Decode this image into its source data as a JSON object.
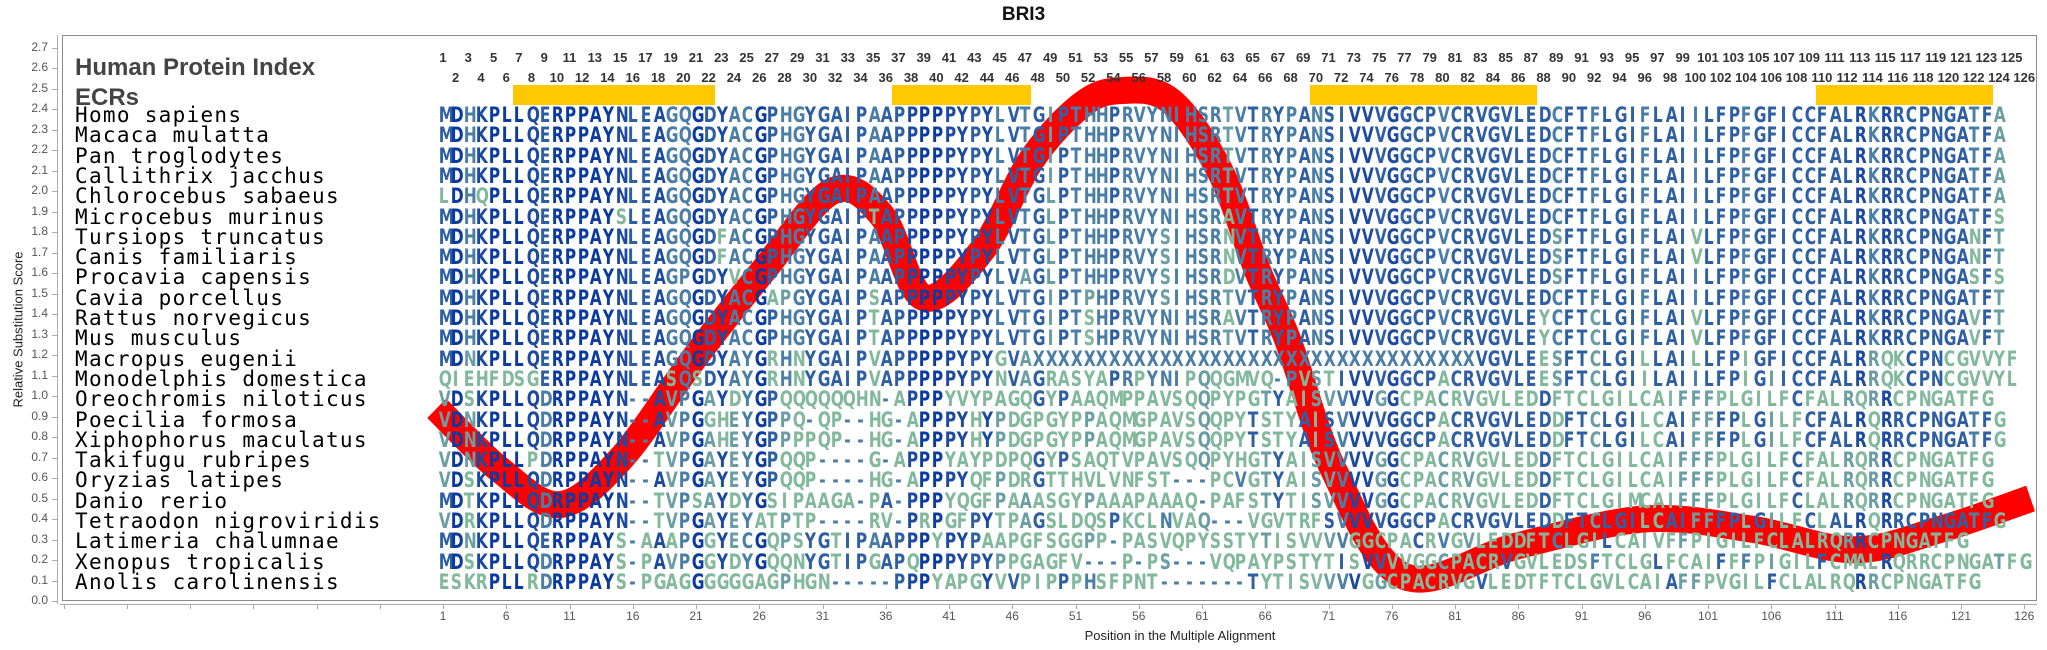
{
  "title": "BRI3",
  "header": {
    "index_label": "Human Protein Index",
    "ecr_label": "ECRs"
  },
  "colors": {
    "curve": "#ff0000",
    "ecr": "#ffc800",
    "conserved": "#0b3b9e",
    "variable": "#78ad9c"
  },
  "ecrs": [
    {
      "start": 7,
      "end": 22
    },
    {
      "start": 37,
      "end": 47
    },
    {
      "start": 70,
      "end": 87
    },
    {
      "start": 110,
      "end": 123
    }
  ],
  "column_count": 126,
  "alignment": [
    {
      "species": "Homo sapiens",
      "sequence": "MDHKPLLQERPPAYNLEAGQGDYACGPHGYGAIPAAPPPPPYPYLVTGIPTHHPRVYNIHSRTVTRYPANSIVVVGGCPVCRVGVLEDCFTFLGIFLAIILFPFGFICCFALRKRRCPNGATFA"
    },
    {
      "species": "Macaca mulatta",
      "sequence": "MDHKPLLQERPPAYNLEAGQGDYACGPHGYGAIPAAPPPPPYPYLVTGIPTHHPRVYNIHSRTVTRYPANSIVVVGGCPVCRVGVLEDCFTFLGIFLAIILFPFGFICCFALRKRRCPNGATFA"
    },
    {
      "species": "Pan troglodytes",
      "sequence": "MDHKPLLQERPPAYNLEAGQGDYACGPHGYGAIPAAPPPPPYPYLVTGIPTHHPRVYNIHSRTVTRYPANSIVVVGGCPVCRVGVLEDCFTFLGIFLAIILFPFGFICCFALRKRRCPNGATFA"
    },
    {
      "species": "Callithrix jacchus",
      "sequence": "MDHKPLLQERPPAYNLEAGQGDYACGPHGYGAIPAAPPPPPYPYLVTGIPTHHPRVYNIHSRTVTRYPANSIVVVGGCPVCRVGVLEDCFTFLGIFLAIILFPFGFICCFALRKRRCPNGATFA"
    },
    {
      "species": "Chlorocebus sabaeus",
      "sequence": "LDHQPLLQERPPAYNLEAGQGDYACGPHGYGAIPAAPPPPPYPYLVTGLPTHHPRVYNIHSRTVTRYPANSIVVVGGCPVCRVGVLEDCFTFLGIFLAIILFPFGFICCFALRKRRCPNGATFA"
    },
    {
      "species": "Microcebus murinus",
      "sequence": "MDHKPLLQERPPAYSLEAGQGDYACGPHGYGAIPTAPPPPPYPYLVTGLPTHHPRVYNIHSRAVTRYPANSIVVVGGCPVCRVGVLEDCFTFLGIFLAIILFPFGFICCFALRKRRCPNGATFS"
    },
    {
      "species": "Tursiops truncatus",
      "sequence": "MDHKPLLQERPPAYNLEAGQGDFACGPHGYGAIPAAPPPPPYPYLVTGLPTHHPRVYSIHSRNVTRYPANSIVVVGGCPVCRVGVLEDSFTFLGIFLAIVLFPFGFICCFALRKRRCPNGANFT"
    },
    {
      "species": "Canis familiaris",
      "sequence": "MDHKPLLQERPPAYNLEAGQGDFACGPHGYGAIPAAPPPPPYPYLVTGLPTHHPRVYSIHSRNVTRYPANSIVVVGGCPVCRVGVLEDSFTFLGIFLAIVLFPFGFICCFALRKRRCPNGANFT"
    },
    {
      "species": "Procavia capensis",
      "sequence": "MDHKPLLQERPPAYNLEAGPGDYVCGPHGYGAIPAAPPPPPYPYLVAGLPTHHPRVYSIHSRDVTRYPANSIVVVGGCPVCRVGVLEDSFTFLGIFLAIILFPFGFICCFALRKRRCPNGASFS"
    },
    {
      "species": "Cavia porcellus",
      "sequence": "MDHKPLLQERPPAYNLEAGQGDYACGAPGYGAIPSAPPPPPYPYLVTGIPTPHPRVYSIHSRTVTRYPANSIVVVGGCPVCRVGVLEDCFTFLGIFLAIILFPFGFICCFALRKRRCPNGATFT"
    },
    {
      "species": "Rattus norvegicus",
      "sequence": "MDHKPLLQERPPAYNLEAGQGDYACGPHGYGAIPTAPPPPPYPYLVTGIPTSHPRVYNIHSRAVTRYPANSIVVVGGCPVCRVGVLEYCFTCLGIFLAIVLFPFGFICCFALRKRRCPNGAVFT"
    },
    {
      "species": "Mus musculus",
      "sequence": "MDHKPLLQERPPAYNLEAGQGDYACGPHGYGAIPTAPPPPPYPYLVTGIPTSHPRVYNIHSRTVTRYPANSIVVVGGCPVCRVGVLEYCFTCLGIFLAIVLFPFGFICCFALRKRRCPNGAVFT"
    },
    {
      "species": "Macropus eugenii",
      "sequence": "MDNKPLLQERPPAYNLEAGQGDYAYGRHNYGAIPVAPPPPPYPYGVAXXXXXXXXXXXXXXXXXXXXXXXXXXXXXXXXXXXVGVLEESFTCLGILLAILLFPIGFICCFALRRQKCPNCGVVYF"
    },
    {
      "species": "Monodelphis domestica",
      "sequence": "QIEHFDSGERPPAYNLEASQSDYAYGRHNYGAIPVAPPPPPYPYNVAGRASYAPRPYNIPQQGMVQ-PVSTIVVVGGCPACRVGVLEESFTCLGIILAIILFPIGIICCFALRRQKCPNCGVVYL"
    },
    {
      "species": "Oreochromis niloticus",
      "sequence": "VDSKPLLQDRPPAYN--AVPGAYDYGPQQQQQQHN-APPPYVYPAGQGYPAAQMPPAVSQQPYPGTYAISVVVVGGCPACRVGVLEDDFTCLGILCAIFFFPLGILFCFALRQRRCPNGATFG"
    },
    {
      "species": "Poecilia formosa",
      "sequence": "VDNKPLLQDRPPAYN--AVPGGHEYGPPQ-QP--HG-APPPYHYPDGPGYPPAQMGPAVSQQPYTSTYAISVVVVGGCPACRVGVLEDDFTCLGILCAIFFFPLGILFCFALRQRRCPNGATFG"
    },
    {
      "species": "Xiphophorus maculatus",
      "sequence": "VDNKPLLQDRPPAYN--AVPGAHEYGPPPPQP--HG-APPPYHYPDGPGYPPAQMGPAVSQQPYTSTYAISVVVVGGCPACRVGVLEDDFTCLGILCAIFFFPLGILFCFALRQRRCPNGATFG"
    },
    {
      "species": "Takifugu rubripes",
      "sequence": "VDNKPLLPDRPPAYN--TVPGAYEYGPQQP----G-APPPYAYPDPQGYPSAQTVPAVSQQPYHGTYAISVVVVGGCPACRVGVLEDDFTCLGILCAIFFFPLGILFCFALRQRRCPNGATFG"
    },
    {
      "species": "Oryzias latipes",
      "sequence": "VDSKPLLQDRPPAYN--AVPGAYEYGPQQP----HG-APPPYQFPDRGTTHVLVNFST---PCVGTYAISVVVVGGCPACRVGVLEDDFTCLGILCAIFFFPLGILFCFALRQRRCPNGATFG"
    },
    {
      "species": "Danio rerio",
      "sequence": "MDTKPLLQDRPPAYN--TVPSAYDYGSIPAAGA-PA-PPPYQGFPAAASGYPAAAPAAAQ-PAFSTYTISVVVVGGCPACRVGVLEDDFTCLGIMCAIFFFPLGILFCLALRQRRCPNGATFG"
    },
    {
      "species": "Tetraodon nigroviridis",
      "sequence": "VDRKPLLQDRPPAYN--TVPGAYEYATPTP----RV-PRPGFPYTPAGSLDQSPKCLNVAQ---VGVTRFSVVVVGGCPACRVGVLEDDFTCLGILCAIFFFPLGILFCLALRQRRCPNGATFG"
    },
    {
      "species": "Latimeria chalumnae",
      "sequence": "MDNKPLLQERPPAYS-AAAPGGYECGQPSYGTIPAAPPPYPYPAAPGFSGGPP-PASVQPYSSTYTISVVVVGGCPACRVGVLEDDFTCLGILCAIVFFPIGILFCLALRQRRCPNGATFG"
    },
    {
      "species": "Xenopus tropicalis",
      "sequence": "MDSKPLLQDRPPAYS-PAVPGGYDYGQQNYGTIPGAPQPPPYPYPPGAGFV---P-PS---VQPAYPSTYTISVVVVGGCPACRVGVLEDSFTCLGLFCAIFFFPIGILFCMALRQRRCPNGATFG"
    },
    {
      "species": "Anolis carolinensis",
      "sequence": "ESKRPLLRDRPPAYS-PGAGGGGGGAGPHGN-----PPPYAPGYVVPIPPPHSFPNT-------TYTISVVVVGGCPACRVGVLEDTFTCLGVLCAIAFFPVGILFCLALRQRRCPNGATFG"
    }
  ],
  "chart_data": {
    "type": "line",
    "title": "BRI3",
    "xlabel": "Position in the Multiple Alignment",
    "ylabel": "Relative Substitution Score",
    "ylim": [
      0,
      2.7
    ],
    "grid": false,
    "y_ticks": [
      "0.0",
      "0.1",
      "0.2",
      "0.3",
      "0.4",
      "0.5",
      "0.6",
      "0.7",
      "0.8",
      "0.9",
      "1.0",
      "1.1",
      "1.2",
      "1.3",
      "1.4",
      "1.5",
      "1.6",
      "1.7",
      "1.8",
      "1.9",
      "2.0",
      "2.1",
      "2.2",
      "2.3",
      "2.4",
      "2.5",
      "2.6",
      "2.7"
    ],
    "x_ticks": [
      "1",
      "6",
      "11",
      "16",
      "21",
      "26",
      "31",
      "36",
      "41",
      "46",
      "51",
      "56",
      "61",
      "66",
      "71",
      "76",
      "81",
      "86",
      "91",
      "96",
      "101",
      "106",
      "111",
      "116",
      "121",
      "126"
    ],
    "series": [
      {
        "x": [
          0.5,
          5.5,
          10.2,
          15,
          20.8,
          26.3,
          31.8,
          35.7,
          39,
          43.6,
          47.5,
          51.5,
          54.6,
          58.5,
          62.4,
          65.4,
          67.8,
          71.4,
          77,
          86,
          96,
          104.5,
          112.5,
          119.4,
          126.5
        ],
        "y": [
          0.94,
          0.64,
          0.47,
          0.69,
          1.18,
          1.61,
          2.0,
          1.88,
          1.48,
          1.71,
          2.15,
          2.42,
          2.49,
          2.44,
          2.1,
          1.61,
          1.27,
          0.64,
          0.12,
          0.27,
          0.4,
          0.35,
          0.25,
          0.35,
          0.5
        ]
      }
    ]
  }
}
